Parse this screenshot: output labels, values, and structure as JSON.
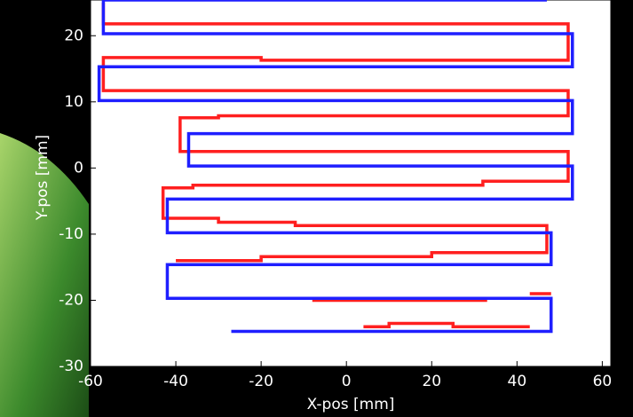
{
  "chart_data": {
    "type": "line",
    "xlabel": "X-pos [mm]",
    "ylabel": "Y-pos [mm]",
    "xlim": [
      -60,
      62
    ],
    "ylim": [
      -30,
      25.4
    ],
    "xticks": [
      -60,
      -40,
      -20,
      0,
      20,
      40,
      60
    ],
    "yticks": [
      -30,
      -20,
      -10,
      0,
      10,
      20
    ],
    "grid": false,
    "series": [
      {
        "color": "#ff1f1f",
        "x": [
          4,
          10,
          10,
          25,
          25,
          43,
          null,
          -8,
          33,
          null,
          43,
          48,
          null,
          -40,
          -20,
          -20,
          20,
          20,
          47,
          47,
          -12,
          -12,
          -30,
          -30,
          -43,
          -43,
          -36,
          -36,
          32,
          32,
          52,
          52,
          -39,
          -39,
          -30,
          -30,
          52,
          52,
          -57,
          -57,
          -20,
          -20,
          52,
          52,
          -57,
          -57
        ],
        "values": [
          -24,
          -24,
          -23.5,
          -23.5,
          -24,
          -24,
          null,
          -20,
          -20,
          null,
          -19,
          -19,
          null,
          -14,
          -14,
          -13.4,
          -13.4,
          -12.8,
          -12.8,
          -8.7,
          -8.7,
          -8.2,
          -8.2,
          -7.6,
          -7.6,
          -3,
          -3,
          -2.6,
          -2.6,
          -2,
          -2,
          2.5,
          2.5,
          7.6,
          7.6,
          7.9,
          7.9,
          11.7,
          11.7,
          16.7,
          16.7,
          16.3,
          16.3,
          21.8,
          21.8,
          25
        ]
      },
      {
        "color": "#1f1fff",
        "x": [
          -27,
          48,
          48,
          -42,
          -42,
          48,
          48,
          -42,
          -42,
          53,
          53,
          -37,
          -37,
          53,
          53,
          -58,
          -58,
          53,
          53,
          -57,
          -57,
          47
        ],
        "values": [
          -24.7,
          -24.7,
          -19.7,
          -19.7,
          -14.6,
          -14.6,
          -9.8,
          -9.8,
          -4.7,
          -4.7,
          0.3,
          0.3,
          5.2,
          5.2,
          10.2,
          10.2,
          15.3,
          15.3,
          20.3,
          20.3,
          25.4,
          25.4
        ]
      }
    ]
  }
}
